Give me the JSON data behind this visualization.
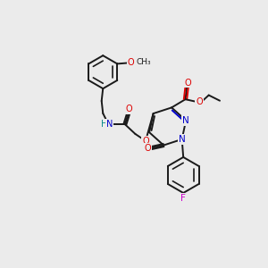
{
  "background_color": "#ebebeb",
  "bond_color": "#1a1a1a",
  "atom_colors": {
    "O": "#dd0000",
    "N": "#0000cc",
    "F": "#cc00cc",
    "H": "#008888",
    "C": "#1a1a1a"
  },
  "figsize": [
    3.0,
    3.0
  ],
  "dpi": 100,
  "lw": 1.4,
  "fs": 7.0
}
